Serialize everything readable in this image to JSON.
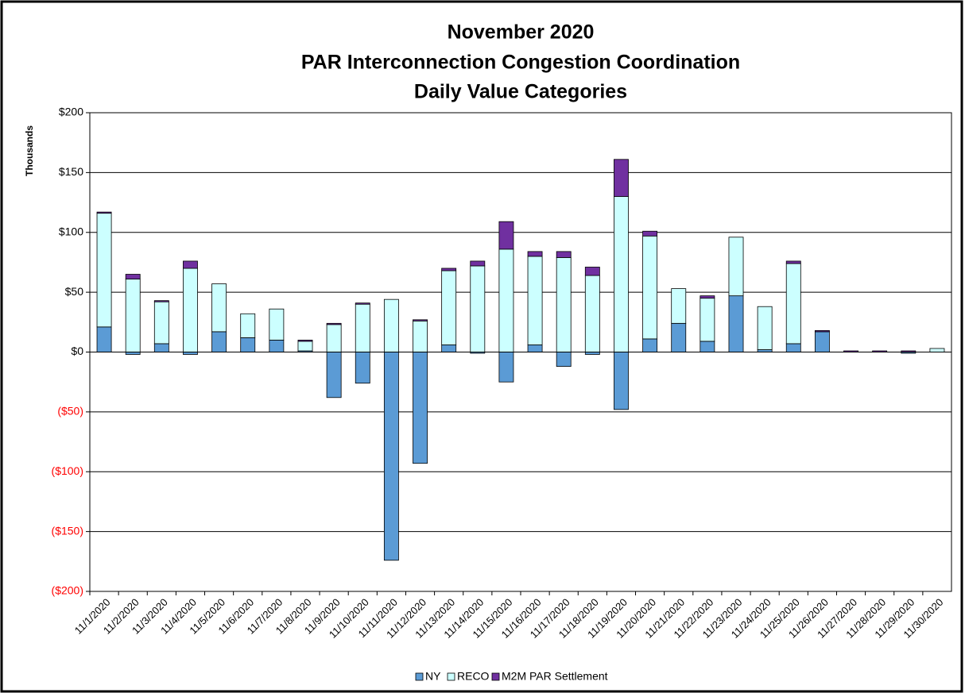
{
  "chart_data": {
    "type": "stacked_bar",
    "title": [
      "November 2020",
      "PAR Interconnection Congestion Coordination",
      "Daily Value Categories"
    ],
    "y_axis_label": "Thousands",
    "categories": [
      "11/1/2020",
      "11/2/2020",
      "11/3/2020",
      "11/4/2020",
      "11/5/2020",
      "11/6/2020",
      "11/7/2020",
      "11/8/2020",
      "11/9/2020",
      "11/10/2020",
      "11/11/2020",
      "11/12/2020",
      "11/13/2020",
      "11/14/2020",
      "11/15/2020",
      "11/16/2020",
      "11/17/2020",
      "11/18/2020",
      "11/19/2020",
      "11/20/2020",
      "11/21/2020",
      "11/22/2020",
      "11/23/2020",
      "11/24/2020",
      "11/25/2020",
      "11/26/2020",
      "11/27/2020",
      "11/28/2020",
      "11/29/2020",
      "11/30/2020"
    ],
    "series": [
      {
        "name": "NY",
        "color": "#5b9bd5",
        "values": [
          21,
          -2,
          7,
          -2,
          17,
          12,
          10,
          1,
          -38,
          -26,
          -174,
          -93,
          6,
          -1,
          -25,
          6,
          -12,
          -2,
          -48,
          11,
          24,
          9,
          47,
          2,
          7,
          17,
          0,
          0,
          -1,
          0
        ]
      },
      {
        "name": "RECO",
        "color": "#ccffff",
        "values": [
          95,
          61,
          35,
          70,
          40,
          20,
          26,
          8,
          23,
          40,
          44,
          26,
          62,
          72,
          86,
          74,
          79,
          64,
          130,
          86,
          29,
          36,
          49,
          36,
          67,
          0,
          0,
          0,
          0,
          3
        ]
      },
      {
        "name": "M2M PAR Settlement",
        "color": "#7030a0",
        "values": [
          1,
          4,
          1,
          6,
          0,
          0,
          0,
          1,
          1,
          1,
          0,
          1,
          2,
          4,
          23,
          4,
          5,
          7,
          31,
          4,
          0,
          2,
          0,
          0,
          2,
          1,
          1,
          1,
          1,
          0
        ]
      }
    ],
    "ylim": [
      -200,
      200
    ],
    "yticks": [
      {
        "value": -200,
        "label": "($200)"
      },
      {
        "value": -150,
        "label": "($150)"
      },
      {
        "value": -100,
        "label": "($100)"
      },
      {
        "value": -50,
        "label": "($50)"
      },
      {
        "value": 0,
        "label": "$0"
      },
      {
        "value": 50,
        "label": "$50"
      },
      {
        "value": 100,
        "label": "$100"
      },
      {
        "value": 150,
        "label": "$150"
      },
      {
        "value": 200,
        "label": "$200"
      }
    ],
    "negative_tick_color": "#ff0000",
    "grid": true,
    "legend": "bottom"
  }
}
